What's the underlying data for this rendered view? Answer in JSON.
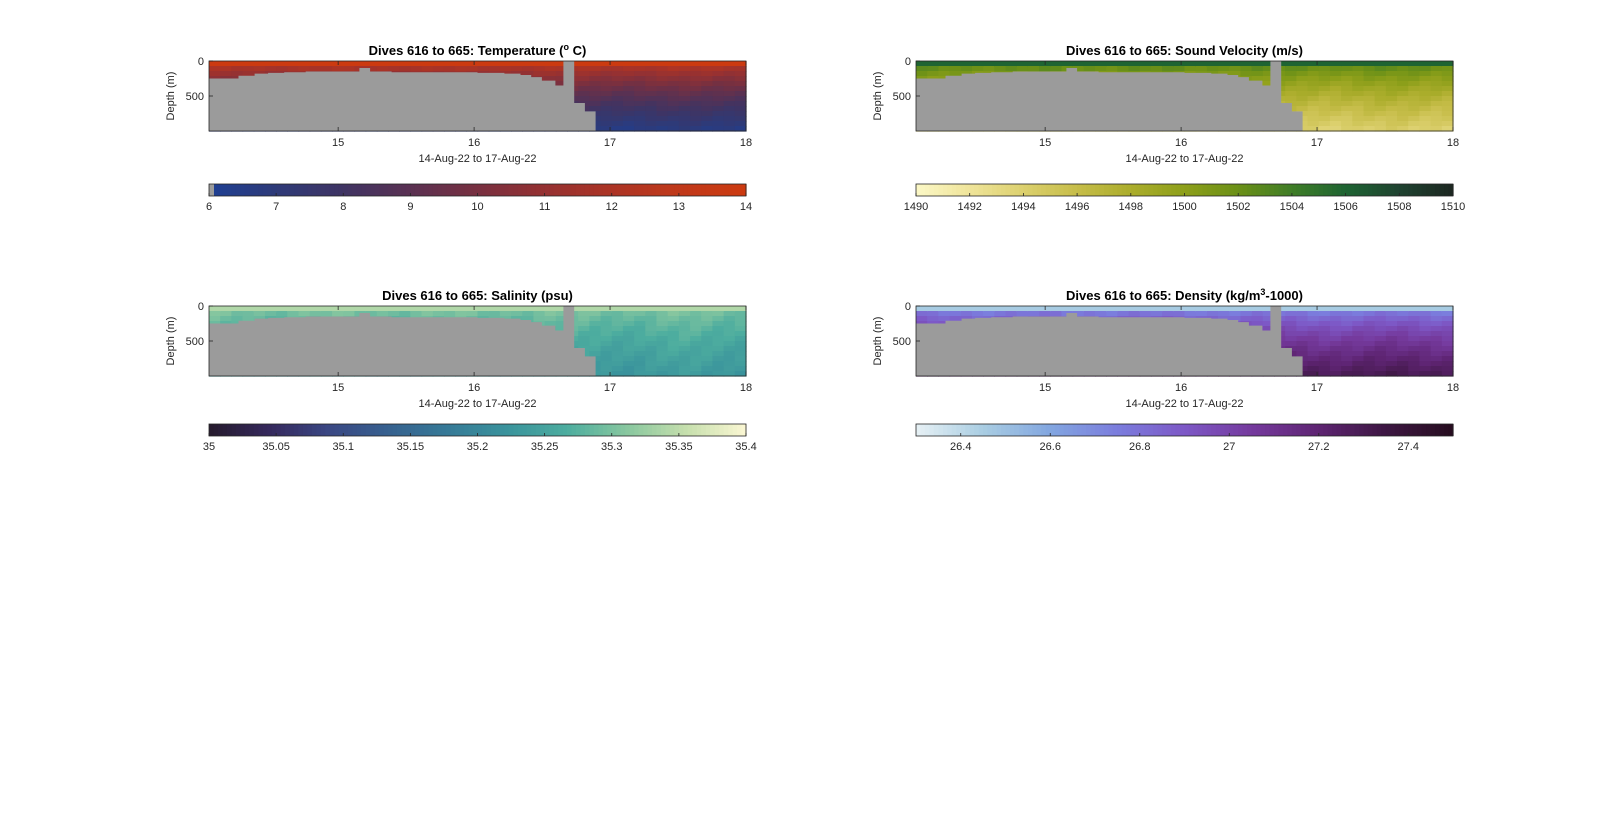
{
  "chart_data": [
    {
      "type": "heatmap",
      "title_main": "Dives 616 to 665: Temperature (",
      "title_sup": "o",
      "title_end": " C)",
      "xlabel": "14-Aug-22 to 17-Aug-22",
      "ylabel": "Depth (m)",
      "xlim": [
        14.05,
        18
      ],
      "ylim": [
        0,
        1000
      ],
      "xticks": [
        "15",
        "16",
        "17",
        "18"
      ],
      "yticks": [
        "0",
        "500"
      ],
      "colorbar": {
        "min": 6,
        "max": 14,
        "ticks": [
          "6",
          "7",
          "8",
          "9",
          "10",
          "11",
          "12",
          "13",
          "14"
        ],
        "colors": [
          "#1e3f93",
          "#2e3a78",
          "#3f3463",
          "#5a3152",
          "#783040",
          "#953132",
          "#ac3425",
          "#c0391a",
          "#cc3a10"
        ]
      },
      "surface_value": 13.6,
      "deep_value": 6.6
    },
    {
      "type": "heatmap",
      "title_main": "Dives 616 to 665: Sound Velocity (m/s)",
      "title_sup": "",
      "title_end": "",
      "xlabel": "14-Aug-22 to 17-Aug-22",
      "ylabel": "Depth (m)",
      "xlim": [
        14.05,
        18
      ],
      "ylim": [
        0,
        1000
      ],
      "xticks": [
        "15",
        "16",
        "17",
        "18"
      ],
      "yticks": [
        "0",
        "500"
      ],
      "colorbar": {
        "min": 1490,
        "max": 1510,
        "ticks": [
          "1490",
          "1492",
          "1494",
          "1496",
          "1498",
          "1500",
          "1502",
          "1504",
          "1506",
          "1508",
          "1510"
        ],
        "colors": [
          "#fbf8c7",
          "#efe49a",
          "#dcd06e",
          "#c6bd49",
          "#abad2c",
          "#8d9f1a",
          "#6b9017",
          "#3f7d27",
          "#1e6432",
          "#1f4331",
          "#1d2721"
        ]
      },
      "surface_value": 1505,
      "deep_value": 1494
    },
    {
      "type": "heatmap",
      "title_main": "Dives 616 to 665: Salinity (psu)",
      "title_sup": "",
      "title_end": "",
      "xlabel": "14-Aug-22 to 17-Aug-22",
      "ylabel": "Depth (m)",
      "xlim": [
        14.05,
        18
      ],
      "ylim": [
        0,
        1000
      ],
      "xticks": [
        "15",
        "16",
        "17",
        "18"
      ],
      "yticks": [
        "0",
        "500"
      ],
      "colorbar": {
        "min": 35,
        "max": 35.4,
        "ticks": [
          "35",
          "35.05",
          "35.1",
          "35.15",
          "35.2",
          "35.25",
          "35.3",
          "35.35",
          "35.4"
        ],
        "colors": [
          "#251a2d",
          "#35285c",
          "#3a4783",
          "#37618f",
          "#367a97",
          "#3a939c",
          "#4dad9f",
          "#88c79f",
          "#c6dfad",
          "#fbf7d3"
        ]
      },
      "surface_value": 35.32,
      "deep_value": 35.23
    },
    {
      "type": "heatmap",
      "title_main": "Dives 616 to 665: Density (kg/m",
      "title_sup": "3",
      "title_end": "-1000)",
      "xlabel": "14-Aug-22 to 17-Aug-22",
      "ylabel": "Depth (m)",
      "xlim": [
        14.05,
        18
      ],
      "ylim": [
        0,
        1000
      ],
      "xticks": [
        "15",
        "16",
        "17",
        "18"
      ],
      "yticks": [
        "0",
        "500"
      ],
      "colorbar": {
        "min": 26.3,
        "max": 27.5,
        "ticks": [
          "26.4",
          "26.6",
          "26.8",
          "27",
          "27.2",
          "27.4"
        ],
        "colors": [
          "#e7f1f5",
          "#a9cde2",
          "#82a6e0",
          "#7b7ddd",
          "#7d58c6",
          "#753a9d",
          "#5e2472",
          "#3d1742",
          "#260d1f"
        ]
      },
      "surface_value": 26.6,
      "deep_value": 27.3
    }
  ],
  "colors": {
    "land_gray": "#9b9b9b",
    "axis": "#262626"
  }
}
